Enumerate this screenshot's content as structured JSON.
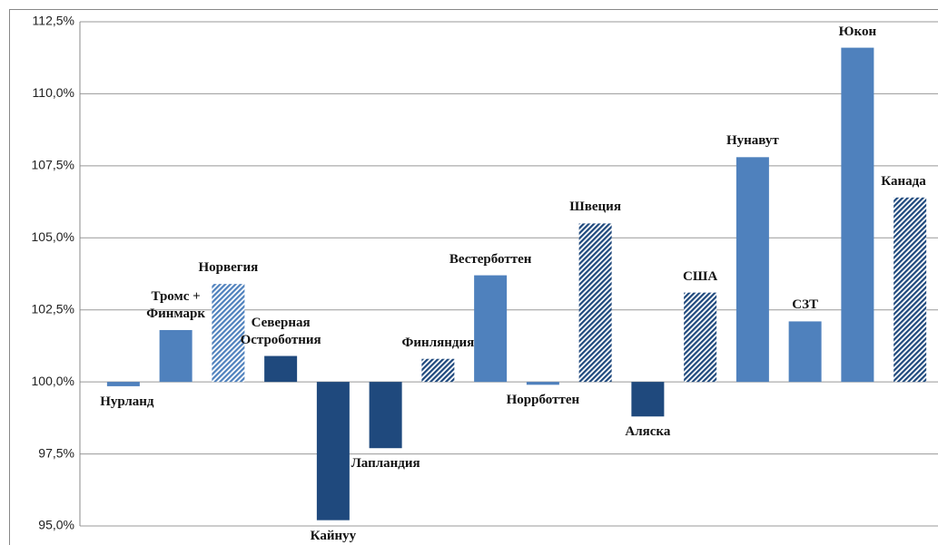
{
  "chart_data": {
    "type": "bar",
    "categories": [
      "Нурланд",
      "Тромс +\nФинмарк",
      "Норвегия",
      "Северная\nОстроботния",
      "Кайнуу",
      "Лапландия",
      "Финляндия",
      "Вестерботтен",
      "Норрботтен",
      "Швеция",
      "Аляска",
      "США",
      "Нунавут",
      "СЗТ",
      "Юкон",
      "Канада"
    ],
    "values": [
      99.85,
      101.8,
      103.4,
      100.9,
      95.2,
      97.7,
      100.8,
      103.7,
      99.9,
      105.5,
      98.8,
      103.1,
      107.8,
      102.1,
      111.6,
      106.4
    ],
    "colors": [
      "#4f81bd",
      "#4f81bd",
      "#4f81bd",
      "#1f497d",
      "#1f497d",
      "#1f497d",
      "#1f497d",
      "#4f81bd",
      "#4f81bd",
      "#1f497d",
      "#1f497d",
      "#1f497d",
      "#4f81bd",
      "#4f81bd",
      "#4f81bd",
      "#1f497d"
    ],
    "hatched": [
      false,
      false,
      true,
      false,
      false,
      false,
      true,
      false,
      false,
      true,
      false,
      true,
      false,
      false,
      false,
      true
    ],
    "ylim": [
      95,
      112.5
    ],
    "yticks": [
      {
        "value": 95,
        "label": "95,0%"
      },
      {
        "value": 97.5,
        "label": "97,5%"
      },
      {
        "value": 100,
        "label": "100,0%"
      },
      {
        "value": 102.5,
        "label": "102,5%"
      },
      {
        "value": 105,
        "label": "105,0%"
      },
      {
        "value": 107.5,
        "label": "107,5%"
      },
      {
        "value": 110,
        "label": "110,0%"
      },
      {
        "value": 112.5,
        "label": "112,5%"
      }
    ],
    "baseline": 100,
    "grid": true
  }
}
